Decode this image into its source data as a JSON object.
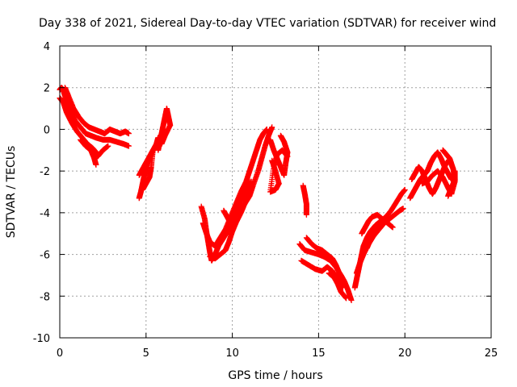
{
  "chart_data": {
    "type": "scatter",
    "title": "Day 338 of 2021, Sidereal Day-to-day VTEC variation (SDTVAR) for receiver wind",
    "xlabel": "GPS time / hours",
    "ylabel": "SDTVAR / TECUs",
    "xlim": [
      0,
      25
    ],
    "ylim": [
      -10,
      4
    ],
    "xticks": [
      0,
      5,
      10,
      15,
      20,
      25
    ],
    "yticks": [
      4,
      2,
      0,
      -2,
      -4,
      -6,
      -8,
      -10
    ],
    "xtick_labels": [
      "0",
      "5",
      "10",
      "15",
      "20",
      "25"
    ],
    "ytick_labels": [
      "4",
      "2",
      "0",
      "-2",
      "-4",
      "-6",
      "-8",
      "-10"
    ],
    "grid": true,
    "marker": "plus",
    "series": [
      {
        "name": "SDTVAR",
        "color": "#ff0000",
        "tracks": [
          [
            [
              0.0,
              1.9
            ],
            [
              0.1,
              2.0
            ],
            [
              0.2,
              1.9
            ],
            [
              0.3,
              1.6
            ],
            [
              0.5,
              1.1
            ],
            [
              0.7,
              0.7
            ],
            [
              0.9,
              0.4
            ],
            [
              1.2,
              0.1
            ],
            [
              1.5,
              -0.2
            ],
            [
              1.8,
              -0.3
            ],
            [
              2.1,
              -0.4
            ],
            [
              2.5,
              -0.5
            ],
            [
              2.9,
              -0.5
            ],
            [
              3.3,
              -0.6
            ],
            [
              3.7,
              -0.7
            ],
            [
              4.0,
              -0.8
            ]
          ],
          [
            [
              0.0,
              1.5
            ],
            [
              0.2,
              1.3
            ],
            [
              0.4,
              0.8
            ],
            [
              0.7,
              0.3
            ],
            [
              1.0,
              -0.1
            ],
            [
              1.3,
              -0.4
            ],
            [
              1.6,
              -0.7
            ],
            [
              1.9,
              -0.9
            ],
            [
              2.1,
              -1.1
            ],
            [
              2.2,
              -1.3
            ],
            [
              2.5,
              -1.0
            ],
            [
              2.8,
              -0.8
            ]
          ],
          [
            [
              0.3,
              2.0
            ],
            [
              0.5,
              1.6
            ],
            [
              0.8,
              1.0
            ],
            [
              1.1,
              0.6
            ],
            [
              1.4,
              0.3
            ],
            [
              1.7,
              0.1
            ],
            [
              2.0,
              0.0
            ],
            [
              2.3,
              -0.1
            ],
            [
              2.6,
              -0.2
            ],
            [
              2.9,
              0.0
            ],
            [
              3.2,
              -0.1
            ],
            [
              3.5,
              -0.2
            ],
            [
              3.8,
              -0.1
            ],
            [
              4.0,
              -0.2
            ]
          ],
          [
            [
              1.2,
              -0.5
            ],
            [
              1.5,
              -0.8
            ],
            [
              1.8,
              -1.0
            ],
            [
              2.0,
              -1.4
            ],
            [
              2.1,
              -1.7
            ]
          ],
          [
            [
              4.6,
              -3.3
            ],
            [
              4.7,
              -3.0
            ],
            [
              4.8,
              -2.6
            ],
            [
              4.9,
              -2.2
            ],
            [
              5.0,
              -1.8
            ],
            [
              5.2,
              -1.4
            ],
            [
              5.4,
              -1.0
            ],
            [
              5.6,
              -0.7
            ],
            [
              5.7,
              -0.4
            ]
          ],
          [
            [
              4.6,
              -2.2
            ],
            [
              4.8,
              -1.9
            ],
            [
              5.0,
              -1.6
            ],
            [
              5.2,
              -1.3
            ],
            [
              5.4,
              -1.0
            ],
            [
              5.3,
              -1.8
            ],
            [
              5.2,
              -2.3
            ],
            [
              5.0,
              -2.6
            ],
            [
              4.8,
              -2.9
            ]
          ],
          [
            [
              5.7,
              -1.0
            ],
            [
              5.8,
              -0.6
            ],
            [
              5.9,
              -0.2
            ],
            [
              6.0,
              0.2
            ],
            [
              6.1,
              0.6
            ],
            [
              6.2,
              1.0
            ],
            [
              6.3,
              0.6
            ],
            [
              6.4,
              0.2
            ],
            [
              6.1,
              -0.3
            ],
            [
              5.9,
              -0.7
            ]
          ],
          [
            [
              8.2,
              -3.7
            ],
            [
              8.4,
              -4.3
            ],
            [
              8.5,
              -4.9
            ],
            [
              8.6,
              -5.4
            ],
            [
              8.7,
              -5.9
            ],
            [
              8.8,
              -6.3
            ],
            [
              9.0,
              -6.0
            ],
            [
              9.2,
              -5.6
            ],
            [
              9.5,
              -5.2
            ],
            [
              9.8,
              -4.8
            ],
            [
              10.0,
              -4.4
            ],
            [
              10.2,
              -4.0
            ],
            [
              10.4,
              -3.6
            ],
            [
              10.6,
              -3.2
            ],
            [
              10.8,
              -2.9
            ],
            [
              11.0,
              -2.5
            ]
          ],
          [
            [
              8.3,
              -4.5
            ],
            [
              8.5,
              -5.0
            ],
            [
              8.7,
              -5.4
            ],
            [
              9.0,
              -5.6
            ],
            [
              9.3,
              -5.2
            ],
            [
              9.6,
              -4.8
            ],
            [
              9.9,
              -4.2
            ],
            [
              10.2,
              -3.6
            ],
            [
              10.5,
              -3.0
            ],
            [
              10.8,
              -2.5
            ],
            [
              11.0,
              -2.0
            ],
            [
              11.2,
              -1.5
            ],
            [
              11.4,
              -1.0
            ],
            [
              11.6,
              -0.5
            ],
            [
              11.8,
              -0.2
            ],
            [
              12.0,
              0.0
            ]
          ],
          [
            [
              8.7,
              -6.1
            ],
            [
              9.0,
              -6.2
            ],
            [
              9.3,
              -6.0
            ],
            [
              9.6,
              -5.8
            ],
            [
              9.8,
              -5.4
            ],
            [
              10.0,
              -4.9
            ],
            [
              10.2,
              -4.5
            ],
            [
              10.5,
              -4.0
            ],
            [
              10.7,
              -3.6
            ],
            [
              11.0,
              -3.2
            ],
            [
              11.2,
              -2.7
            ],
            [
              11.5,
              -2.0
            ],
            [
              11.7,
              -1.4
            ],
            [
              11.9,
              -0.8
            ],
            [
              12.1,
              -0.3
            ],
            [
              12.3,
              0.1
            ]
          ],
          [
            [
              9.5,
              -3.9
            ],
            [
              9.7,
              -4.2
            ],
            [
              9.9,
              -4.5
            ],
            [
              10.1,
              -4.0
            ],
            [
              10.3,
              -3.5
            ],
            [
              10.5,
              -3.2
            ],
            [
              10.7,
              -3.4
            ],
            [
              10.9,
              -2.9
            ],
            [
              11.1,
              -2.5
            ]
          ],
          [
            [
              12.2,
              -0.5
            ],
            [
              12.4,
              -1.0
            ],
            [
              12.6,
              -1.4
            ],
            [
              12.8,
              -1.8
            ],
            [
              13.0,
              -2.2
            ],
            [
              13.1,
              -1.6
            ],
            [
              13.2,
              -1.1
            ],
            [
              13.0,
              -0.6
            ],
            [
              12.8,
              -0.3
            ]
          ],
          [
            [
              12.3,
              -1.5
            ],
            [
              12.5,
              -2.0
            ],
            [
              12.7,
              -2.6
            ],
            [
              12.5,
              -2.9
            ],
            [
              12.2,
              -3.0
            ],
            [
              12.4,
              -1.8
            ],
            [
              12.6,
              -1.2
            ],
            [
              12.9,
              -1.0
            ],
            [
              13.2,
              -1.3
            ]
          ],
          [
            [
              14.1,
              -2.7
            ],
            [
              14.2,
              -3.1
            ],
            [
              14.3,
              -3.6
            ],
            [
              14.3,
              -4.1
            ]
          ],
          [
            [
              13.9,
              -5.5
            ],
            [
              14.2,
              -5.8
            ],
            [
              14.6,
              -5.9
            ],
            [
              15.0,
              -6.0
            ],
            [
              15.3,
              -6.1
            ],
            [
              15.7,
              -6.3
            ],
            [
              16.0,
              -6.6
            ],
            [
              16.3,
              -7.0
            ],
            [
              16.5,
              -7.3
            ],
            [
              16.7,
              -7.7
            ],
            [
              16.9,
              -8.2
            ]
          ],
          [
            [
              14.0,
              -6.3
            ],
            [
              14.4,
              -6.5
            ],
            [
              14.8,
              -6.7
            ],
            [
              15.2,
              -6.8
            ],
            [
              15.5,
              -6.6
            ],
            [
              15.8,
              -6.8
            ],
            [
              16.1,
              -7.2
            ],
            [
              16.4,
              -7.6
            ]
          ],
          [
            [
              14.3,
              -5.2
            ],
            [
              14.6,
              -5.5
            ],
            [
              14.9,
              -5.7
            ],
            [
              15.2,
              -5.8
            ],
            [
              15.5,
              -6.0
            ],
            [
              15.8,
              -6.2
            ],
            [
              16.0,
              -6.5
            ],
            [
              16.2,
              -6.9
            ],
            [
              16.4,
              -7.4
            ]
          ],
          [
            [
              15.6,
              -6.9
            ],
            [
              15.9,
              -7.1
            ],
            [
              16.1,
              -7.4
            ],
            [
              16.3,
              -7.8
            ],
            [
              16.6,
              -8.1
            ]
          ],
          [
            [
              17.1,
              -7.6
            ],
            [
              17.2,
              -7.2
            ],
            [
              17.3,
              -6.8
            ],
            [
              17.4,
              -6.4
            ],
            [
              17.5,
              -6.0
            ],
            [
              17.6,
              -5.6
            ],
            [
              17.8,
              -5.2
            ],
            [
              18.0,
              -4.9
            ],
            [
              18.3,
              -4.6
            ],
            [
              18.6,
              -4.4
            ],
            [
              18.9,
              -4.2
            ],
            [
              19.2,
              -3.9
            ],
            [
              19.5,
              -3.5
            ],
            [
              19.8,
              -3.1
            ],
            [
              20.0,
              -2.9
            ]
          ],
          [
            [
              17.2,
              -6.9
            ],
            [
              17.4,
              -6.4
            ],
            [
              17.6,
              -6.0
            ],
            [
              17.9,
              -5.5
            ],
            [
              18.2,
              -5.1
            ],
            [
              18.5,
              -4.8
            ],
            [
              18.8,
              -4.5
            ],
            [
              19.1,
              -4.3
            ],
            [
              19.4,
              -4.1
            ],
            [
              19.7,
              -3.9
            ],
            [
              19.9,
              -3.8
            ]
          ],
          [
            [
              17.5,
              -5.0
            ],
            [
              17.7,
              -4.7
            ],
            [
              17.9,
              -4.4
            ],
            [
              18.1,
              -4.2
            ],
            [
              18.4,
              -4.1
            ],
            [
              18.7,
              -4.3
            ],
            [
              19.0,
              -4.5
            ],
            [
              19.3,
              -4.7
            ]
          ],
          [
            [
              17.8,
              -5.7
            ],
            [
              18.0,
              -5.3
            ],
            [
              18.3,
              -4.9
            ],
            [
              18.6,
              -4.6
            ],
            [
              18.9,
              -4.3
            ]
          ],
          [
            [
              20.3,
              -3.3
            ],
            [
              20.5,
              -3.0
            ],
            [
              20.7,
              -2.7
            ],
            [
              20.9,
              -2.4
            ],
            [
              21.1,
              -2.2
            ],
            [
              21.3,
              -2.0
            ],
            [
              21.5,
              -1.6
            ],
            [
              21.7,
              -1.3
            ],
            [
              21.9,
              -1.1
            ],
            [
              22.1,
              -1.4
            ],
            [
              22.3,
              -1.8
            ],
            [
              22.5,
              -2.1
            ],
            [
              22.7,
              -2.4
            ]
          ],
          [
            [
              20.4,
              -2.4
            ],
            [
              20.6,
              -2.1
            ],
            [
              20.8,
              -1.8
            ],
            [
              21.0,
              -2.0
            ],
            [
              21.2,
              -2.4
            ],
            [
              21.4,
              -2.8
            ],
            [
              21.6,
              -3.1
            ],
            [
              21.8,
              -2.8
            ],
            [
              22.0,
              -2.4
            ],
            [
              22.2,
              -2.0
            ],
            [
              22.4,
              -1.6
            ],
            [
              22.6,
              -1.5
            ],
            [
              22.8,
              -1.9
            ]
          ],
          [
            [
              21.0,
              -2.6
            ],
            [
              21.3,
              -2.5
            ],
            [
              21.6,
              -2.2
            ],
            [
              21.9,
              -2.0
            ],
            [
              22.2,
              -2.3
            ],
            [
              22.5,
              -2.8
            ],
            [
              22.7,
              -3.1
            ],
            [
              22.9,
              -2.5
            ],
            [
              22.9,
              -2.0
            ]
          ],
          [
            [
              22.2,
              -1.0
            ],
            [
              22.4,
              -1.2
            ],
            [
              22.6,
              -1.4
            ],
            [
              22.8,
              -1.9
            ],
            [
              22.9,
              -2.4
            ],
            [
              22.7,
              -2.8
            ],
            [
              22.5,
              -3.2
            ]
          ]
        ]
      }
    ]
  }
}
